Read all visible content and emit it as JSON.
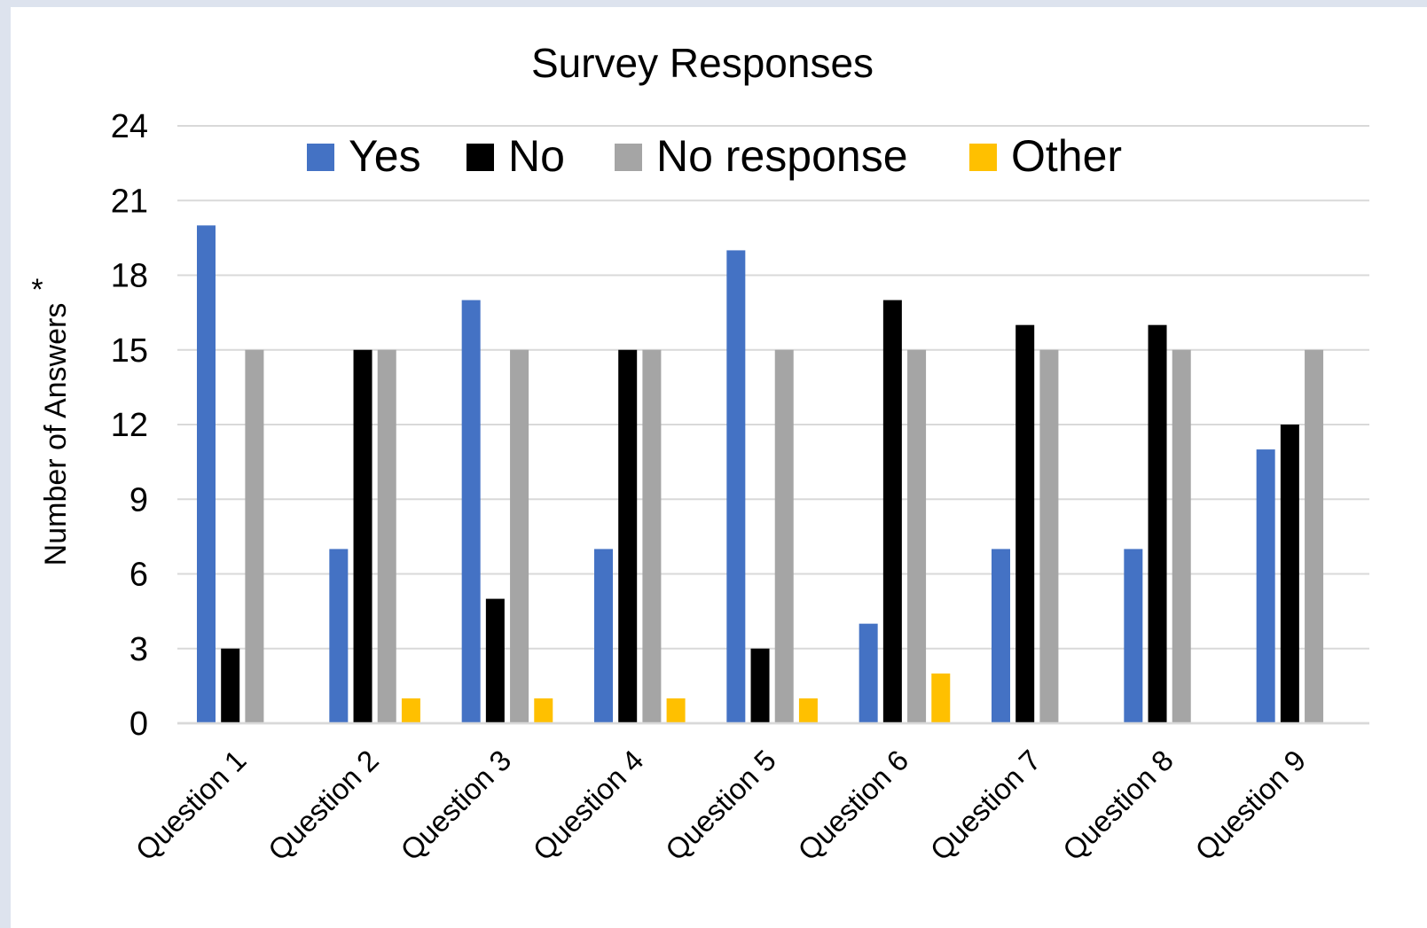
{
  "chart_data": {
    "type": "bar",
    "title": "Survey Responses",
    "xlabel": "",
    "ylabel": "Number of Answers",
    "ylabel_marker": "*",
    "ylim": [
      0,
      24
    ],
    "yticks": [
      0,
      3,
      6,
      9,
      12,
      15,
      18,
      21,
      24
    ],
    "grid": true,
    "legend_position": "top",
    "categories": [
      "Question 1",
      "Question 2",
      "Question 3",
      "Question 4",
      "Question 5",
      "Question 6",
      "Question 7",
      "Question 8",
      "Question 9"
    ],
    "series": [
      {
        "name": "Yes",
        "color": "#4472c4",
        "values": [
          20,
          7,
          17,
          7,
          19,
          4,
          7,
          7,
          11
        ]
      },
      {
        "name": "No",
        "color": "#000000",
        "values": [
          3,
          15,
          5,
          15,
          3,
          17,
          16,
          16,
          12
        ]
      },
      {
        "name": "No response",
        "color": "#a5a5a5",
        "values": [
          15,
          15,
          15,
          15,
          15,
          15,
          15,
          15,
          15
        ]
      },
      {
        "name": "Other",
        "color": "#ffc000",
        "values": [
          0,
          1,
          1,
          1,
          1,
          2,
          0,
          0,
          0
        ]
      }
    ]
  }
}
